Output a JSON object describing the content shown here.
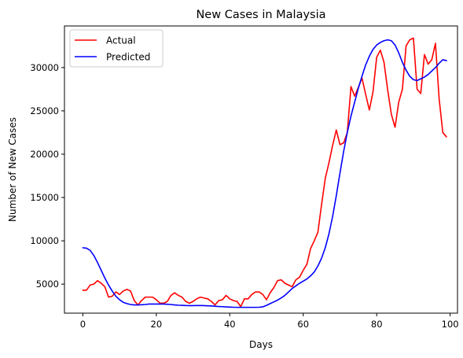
{
  "chart_data": {
    "type": "line",
    "title": "New Cases in Malaysia",
    "xlabel": "Days",
    "ylabel": "Number of New Cases",
    "xlim": [
      -5,
      102
    ],
    "ylim": [
      1650,
      34800
    ],
    "xticks": [
      0,
      20,
      40,
      60,
      80,
      100
    ],
    "yticks": [
      5000,
      10000,
      15000,
      20000,
      25000,
      30000
    ],
    "grid": false,
    "legend_position": "top-left",
    "series": [
      {
        "name": "Actual",
        "color": "#ff0000",
        "points": [
          [
            0,
            4300
          ],
          [
            1,
            4300
          ],
          [
            2,
            4900
          ],
          [
            3,
            5000
          ],
          [
            4,
            5400
          ],
          [
            5,
            5100
          ],
          [
            6,
            4700
          ],
          [
            7,
            3500
          ],
          [
            8,
            3600
          ],
          [
            9,
            4100
          ],
          [
            10,
            3800
          ],
          [
            11,
            4200
          ],
          [
            12,
            4400
          ],
          [
            13,
            4200
          ],
          [
            14,
            3100
          ],
          [
            15,
            2600
          ],
          [
            16,
            3100
          ],
          [
            17,
            3500
          ],
          [
            18,
            3500
          ],
          [
            19,
            3500
          ],
          [
            20,
            3200
          ],
          [
            21,
            2800
          ],
          [
            22,
            2800
          ],
          [
            23,
            3000
          ],
          [
            24,
            3700
          ],
          [
            25,
            4000
          ],
          [
            26,
            3700
          ],
          [
            27,
            3500
          ],
          [
            28,
            3000
          ],
          [
            29,
            2800
          ],
          [
            30,
            3000
          ],
          [
            31,
            3300
          ],
          [
            32,
            3500
          ],
          [
            33,
            3400
          ],
          [
            34,
            3300
          ],
          [
            35,
            3000
          ],
          [
            36,
            2600
          ],
          [
            37,
            3100
          ],
          [
            38,
            3200
          ],
          [
            39,
            3700
          ],
          [
            40,
            3300
          ],
          [
            41,
            3100
          ],
          [
            42,
            3000
          ],
          [
            43,
            2400
          ],
          [
            44,
            3300
          ],
          [
            45,
            3300
          ],
          [
            46,
            3800
          ],
          [
            47,
            4100
          ],
          [
            48,
            4100
          ],
          [
            49,
            3800
          ],
          [
            50,
            3200
          ],
          [
            51,
            4000
          ],
          [
            52,
            4600
          ],
          [
            53,
            5400
          ],
          [
            54,
            5500
          ],
          [
            55,
            5100
          ],
          [
            56,
            4900
          ],
          [
            57,
            4700
          ],
          [
            58,
            5500
          ],
          [
            59,
            5800
          ],
          [
            60,
            6600
          ],
          [
            61,
            7300
          ],
          [
            62,
            9100
          ],
          [
            63,
            10000
          ],
          [
            64,
            11000
          ],
          [
            65,
            14200
          ],
          [
            66,
            17200
          ],
          [
            67,
            19000
          ],
          [
            68,
            21000
          ],
          [
            69,
            22800
          ],
          [
            70,
            21100
          ],
          [
            71,
            21300
          ],
          [
            72,
            22500
          ],
          [
            73,
            27800
          ],
          [
            74,
            26700
          ],
          [
            75,
            27700
          ],
          [
            76,
            28800
          ],
          [
            77,
            26900
          ],
          [
            78,
            25100
          ],
          [
            79,
            27200
          ],
          [
            80,
            31200
          ],
          [
            81,
            32000
          ],
          [
            82,
            30600
          ],
          [
            83,
            27400
          ],
          [
            84,
            24600
          ],
          [
            85,
            23100
          ],
          [
            86,
            26000
          ],
          [
            87,
            27500
          ],
          [
            88,
            32500
          ],
          [
            89,
            33200
          ],
          [
            90,
            33400
          ],
          [
            91,
            27500
          ],
          [
            92,
            27000
          ],
          [
            93,
            31500
          ],
          [
            94,
            30400
          ],
          [
            95,
            30900
          ],
          [
            96,
            32800
          ],
          [
            97,
            26400
          ],
          [
            98,
            22500
          ],
          [
            99,
            22000
          ]
        ]
      },
      {
        "name": "Predicted",
        "color": "#0000ff",
        "points": [
          [
            0,
            9200
          ],
          [
            1,
            9150
          ],
          [
            2,
            8900
          ],
          [
            3,
            8300
          ],
          [
            4,
            7500
          ],
          [
            5,
            6600
          ],
          [
            6,
            5700
          ],
          [
            7,
            4900
          ],
          [
            8,
            4200
          ],
          [
            9,
            3600
          ],
          [
            10,
            3200
          ],
          [
            11,
            2900
          ],
          [
            12,
            2750
          ],
          [
            13,
            2650
          ],
          [
            14,
            2600
          ],
          [
            15,
            2600
          ],
          [
            16,
            2620
          ],
          [
            17,
            2650
          ],
          [
            18,
            2700
          ],
          [
            19,
            2700
          ],
          [
            20,
            2700
          ],
          [
            21,
            2700
          ],
          [
            22,
            2700
          ],
          [
            23,
            2680
          ],
          [
            24,
            2650
          ],
          [
            25,
            2600
          ],
          [
            26,
            2570
          ],
          [
            27,
            2550
          ],
          [
            28,
            2530
          ],
          [
            29,
            2520
          ],
          [
            30,
            2520
          ],
          [
            31,
            2530
          ],
          [
            32,
            2530
          ],
          [
            33,
            2520
          ],
          [
            34,
            2500
          ],
          [
            35,
            2480
          ],
          [
            36,
            2450
          ],
          [
            37,
            2420
          ],
          [
            38,
            2400
          ],
          [
            39,
            2370
          ],
          [
            40,
            2350
          ],
          [
            41,
            2330
          ],
          [
            42,
            2320
          ],
          [
            43,
            2320
          ],
          [
            44,
            2320
          ],
          [
            45,
            2320
          ],
          [
            46,
            2320
          ],
          [
            47,
            2320
          ],
          [
            48,
            2330
          ],
          [
            49,
            2380
          ],
          [
            50,
            2550
          ],
          [
            51,
            2750
          ],
          [
            52,
            2950
          ],
          [
            53,
            3150
          ],
          [
            54,
            3400
          ],
          [
            55,
            3700
          ],
          [
            56,
            4100
          ],
          [
            57,
            4500
          ],
          [
            58,
            4800
          ],
          [
            59,
            5100
          ],
          [
            60,
            5350
          ],
          [
            61,
            5600
          ],
          [
            62,
            5950
          ],
          [
            63,
            6400
          ],
          [
            64,
            7100
          ],
          [
            65,
            8000
          ],
          [
            66,
            9200
          ],
          [
            67,
            10800
          ],
          [
            68,
            12800
          ],
          [
            69,
            15200
          ],
          [
            70,
            17800
          ],
          [
            71,
            20300
          ],
          [
            72,
            22500
          ],
          [
            73,
            24400
          ],
          [
            74,
            26000
          ],
          [
            75,
            27600
          ],
          [
            76,
            29000
          ],
          [
            77,
            30300
          ],
          [
            78,
            31300
          ],
          [
            79,
            32100
          ],
          [
            80,
            32600
          ],
          [
            81,
            32900
          ],
          [
            82,
            33100
          ],
          [
            83,
            33200
          ],
          [
            84,
            33100
          ],
          [
            85,
            32600
          ],
          [
            86,
            31700
          ],
          [
            87,
            30600
          ],
          [
            88,
            29700
          ],
          [
            89,
            29000
          ],
          [
            90,
            28600
          ],
          [
            91,
            28500
          ],
          [
            92,
            28700
          ],
          [
            93,
            28900
          ],
          [
            94,
            29200
          ],
          [
            95,
            29600
          ],
          [
            96,
            30000
          ],
          [
            97,
            30500
          ],
          [
            98,
            30900
          ],
          [
            99,
            30800
          ]
        ]
      }
    ]
  }
}
